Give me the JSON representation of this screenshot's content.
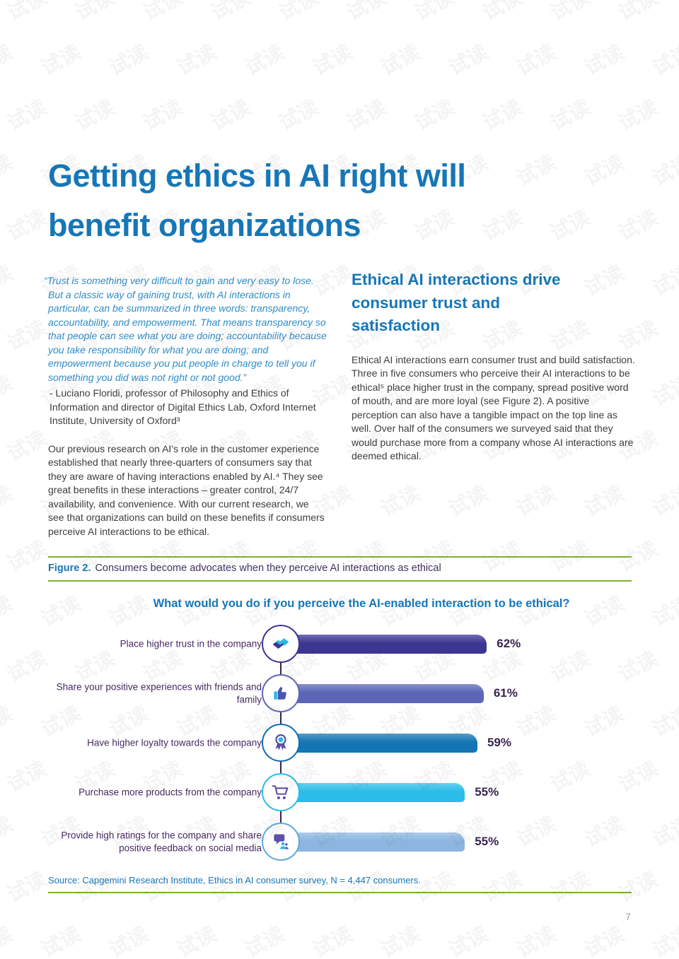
{
  "watermark": {
    "text": "试读"
  },
  "page": {
    "number": "7"
  },
  "title": {
    "text": "Getting ethics in AI right will benefit organizations"
  },
  "left_column": {
    "quote": "“Trust is something very difficult to gain and very easy to lose. But a classic way of gaining trust, with AI interactions in particular, can be summarized in three words: transparency, accountability, and empowerment. That means transparency so that people can see what you are doing; accountability because you take responsibility for what you are doing; and empowerment because you put people in charge to tell you if something you did was not right or not good.”",
    "attribution": "- Luciano Floridi, professor of Philosophy and Ethics of Information and director of Digital Ethics Lab, Oxford Internet Institute, University of Oxford³",
    "body": "Our previous research on AI’s role in the customer experience established that nearly three-quarters of consumers say that they are aware of having interactions enabled by AI.⁴ They see great benefits in these interactions – greater control, 24/7 availability, and convenience. With our current research, we see that organizations can build on these benefits if consumers perceive AI interactions to be ethical."
  },
  "right_column": {
    "heading": "Ethical AI interactions drive consumer trust and satisfaction",
    "body": "Ethical AI interactions earn consumer trust and build satisfaction. Three in five consumers who perceive their AI interactions to be ethical⁵ place higher trust in the company, spread positive word of mouth, and are more loyal (see Figure 2). A positive perception can also have a tangible impact on the top line as well. Over half of the consumers we surveyed said that they would purchase more from a company whose AI interactions are deemed ethical."
  },
  "figure": {
    "label": "Figure 2.",
    "caption": "Consumers become advocates when they perceive AI interactions as ethical",
    "source": "Source: Capgemini Research Institute, Ethics in AI consumer survey, N = 4,447 consumers."
  },
  "chart_data": {
    "type": "bar",
    "orientation": "horizontal",
    "title": "What would you do if you perceive the AI-enabled interaction to be ethical?",
    "categories": [
      "Place higher trust in the company",
      "Share your positive experiences with friends and family",
      "Have higher loyalty towards the company",
      "Purchase more products from the company",
      "Provide high ratings for the company and share positive feedback on social media"
    ],
    "values": [
      62,
      61,
      59,
      55,
      55
    ],
    "unit": "%",
    "xlim": [
      0,
      100
    ],
    "grid": false,
    "legend": "none",
    "bars": [
      {
        "label": "Place higher trust in the company",
        "value": 62,
        "display": "62%",
        "icon": "handshake-icon",
        "bar_color": "#3c3693",
        "ring_color": "#3c3693"
      },
      {
        "label": "Share your positive experiences with friends and family",
        "value": 61,
        "display": "61%",
        "icon": "thumbs-up-icon",
        "bar_color": "#5c66b8",
        "ring_color": "#5c66b8"
      },
      {
        "label": "Have higher loyalty towards the company",
        "value": 59,
        "display": "59%",
        "icon": "medal-icon",
        "bar_color": "#1475b4",
        "ring_color": "#0f6fb0"
      },
      {
        "label": "Purchase more products from the company",
        "value": 55,
        "display": "55%",
        "icon": "cart-icon",
        "bar_color": "#2abde9",
        "ring_color": "#2abde9"
      },
      {
        "label": "Provide high ratings for the company and share positive feedback on social media",
        "value": 55,
        "display": "55%",
        "icon": "social-feedback-icon",
        "bar_color": "#8cb6e0",
        "ring_color": "#5fa8dd"
      }
    ]
  },
  "colors": {
    "heading_blue": "#1677b8",
    "quote_blue": "#2e8cc8",
    "body_gray": "#3d3d3c",
    "purple_text": "#472a63",
    "value_purple": "#3a2450",
    "rule_green": "#7db32a",
    "accent_cyan": "#29b9e8",
    "icon_purple": "#5b51a8"
  }
}
